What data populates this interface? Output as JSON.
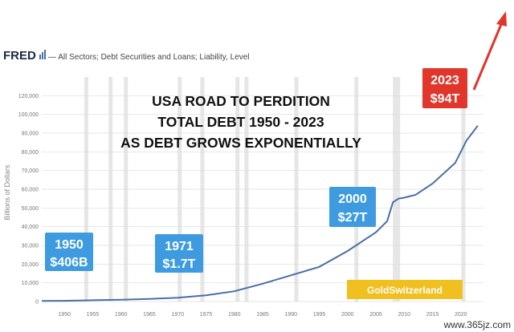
{
  "header": {
    "logo": "FRED",
    "series_title": "— All Sectors; Debt Securities and Loans; Liability, Level"
  },
  "overlay": {
    "title_lines": [
      "USA ROAD TO PERDITION",
      "TOTAL DEBT 1950 - 2023",
      "AS DEBT GROWS EXPONENTIALLY"
    ],
    "badges": [
      {
        "year": "1950",
        "value": "$406B",
        "color": "#3f9be0"
      },
      {
        "year": "1971",
        "value": "$1.7T",
        "color": "#3f9be0"
      },
      {
        "year": "2000",
        "value": "$27T",
        "color": "#3f9be0"
      },
      {
        "year": "2023",
        "value": "$94T",
        "color": "#e0362b"
      }
    ],
    "brand": "GoldSwitzerland",
    "brand_color": "#f0c020",
    "watermark": "www.365jz.com",
    "arrow_color": "#e0362b"
  },
  "chart_data": {
    "type": "line",
    "xlabel": "",
    "ylabel": "Billions of Dollars",
    "xlim": [
      1946,
      2024
    ],
    "ylim": [
      0,
      120000
    ],
    "x_ticks": [
      "1950",
      "1955",
      "1960",
      "1965",
      "1970",
      "1975",
      "1980",
      "1985",
      "1990",
      "1995",
      "2000",
      "2005",
      "2010",
      "2015",
      "2020"
    ],
    "y_ticks": [
      "0",
      "10,000",
      "20,000",
      "30,000",
      "40,000",
      "50,000",
      "60,000",
      "70,000",
      "80,000",
      "90,000",
      "100,000",
      "120,000"
    ],
    "grid": true,
    "line_color": "#4a6fa5",
    "series": [
      {
        "x": [
          1946,
          1950,
          1955,
          1960,
          1965,
          1970,
          1975,
          1980,
          1985,
          1990,
          1995,
          2000,
          2005,
          2007,
          2008,
          2009,
          2010,
          2012,
          2015,
          2019,
          2020,
          2021,
          2022,
          2023
        ],
        "values": [
          300,
          406,
          700,
          1000,
          1400,
          2000,
          3300,
          5500,
          9500,
          14000,
          18500,
          27000,
          37000,
          43000,
          53000,
          55000,
          55500,
          57000,
          63000,
          74000,
          80000,
          86000,
          90000,
          94000
        ]
      }
    ]
  }
}
